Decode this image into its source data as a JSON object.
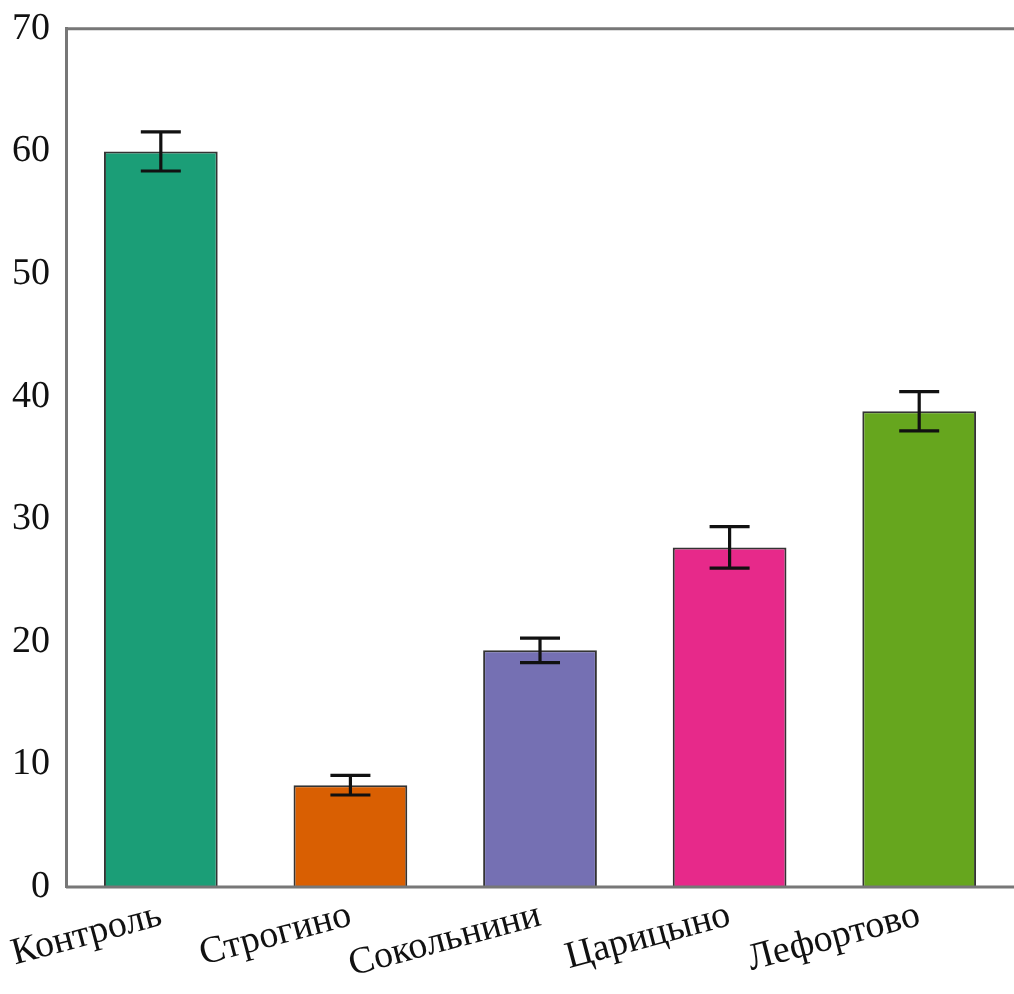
{
  "chart_data": {
    "type": "bar",
    "categories": [
      "Контроль",
      "Строгино",
      "Сокольнини",
      "Царицыно",
      "Лефортово"
    ],
    "values": [
      60.0,
      8.3,
      19.3,
      27.7,
      38.8
    ],
    "colors": [
      "#1b9e77",
      "#d95f02",
      "#7570b3",
      "#e7298a",
      "#66a61e"
    ],
    "errors": [
      1.6,
      0.8,
      1.0,
      1.7,
      1.6
    ],
    "ylim": [
      0,
      70
    ],
    "yticks": [
      0,
      10,
      20,
      30,
      40,
      50,
      60,
      70
    ],
    "grid": false,
    "legend": false
  }
}
